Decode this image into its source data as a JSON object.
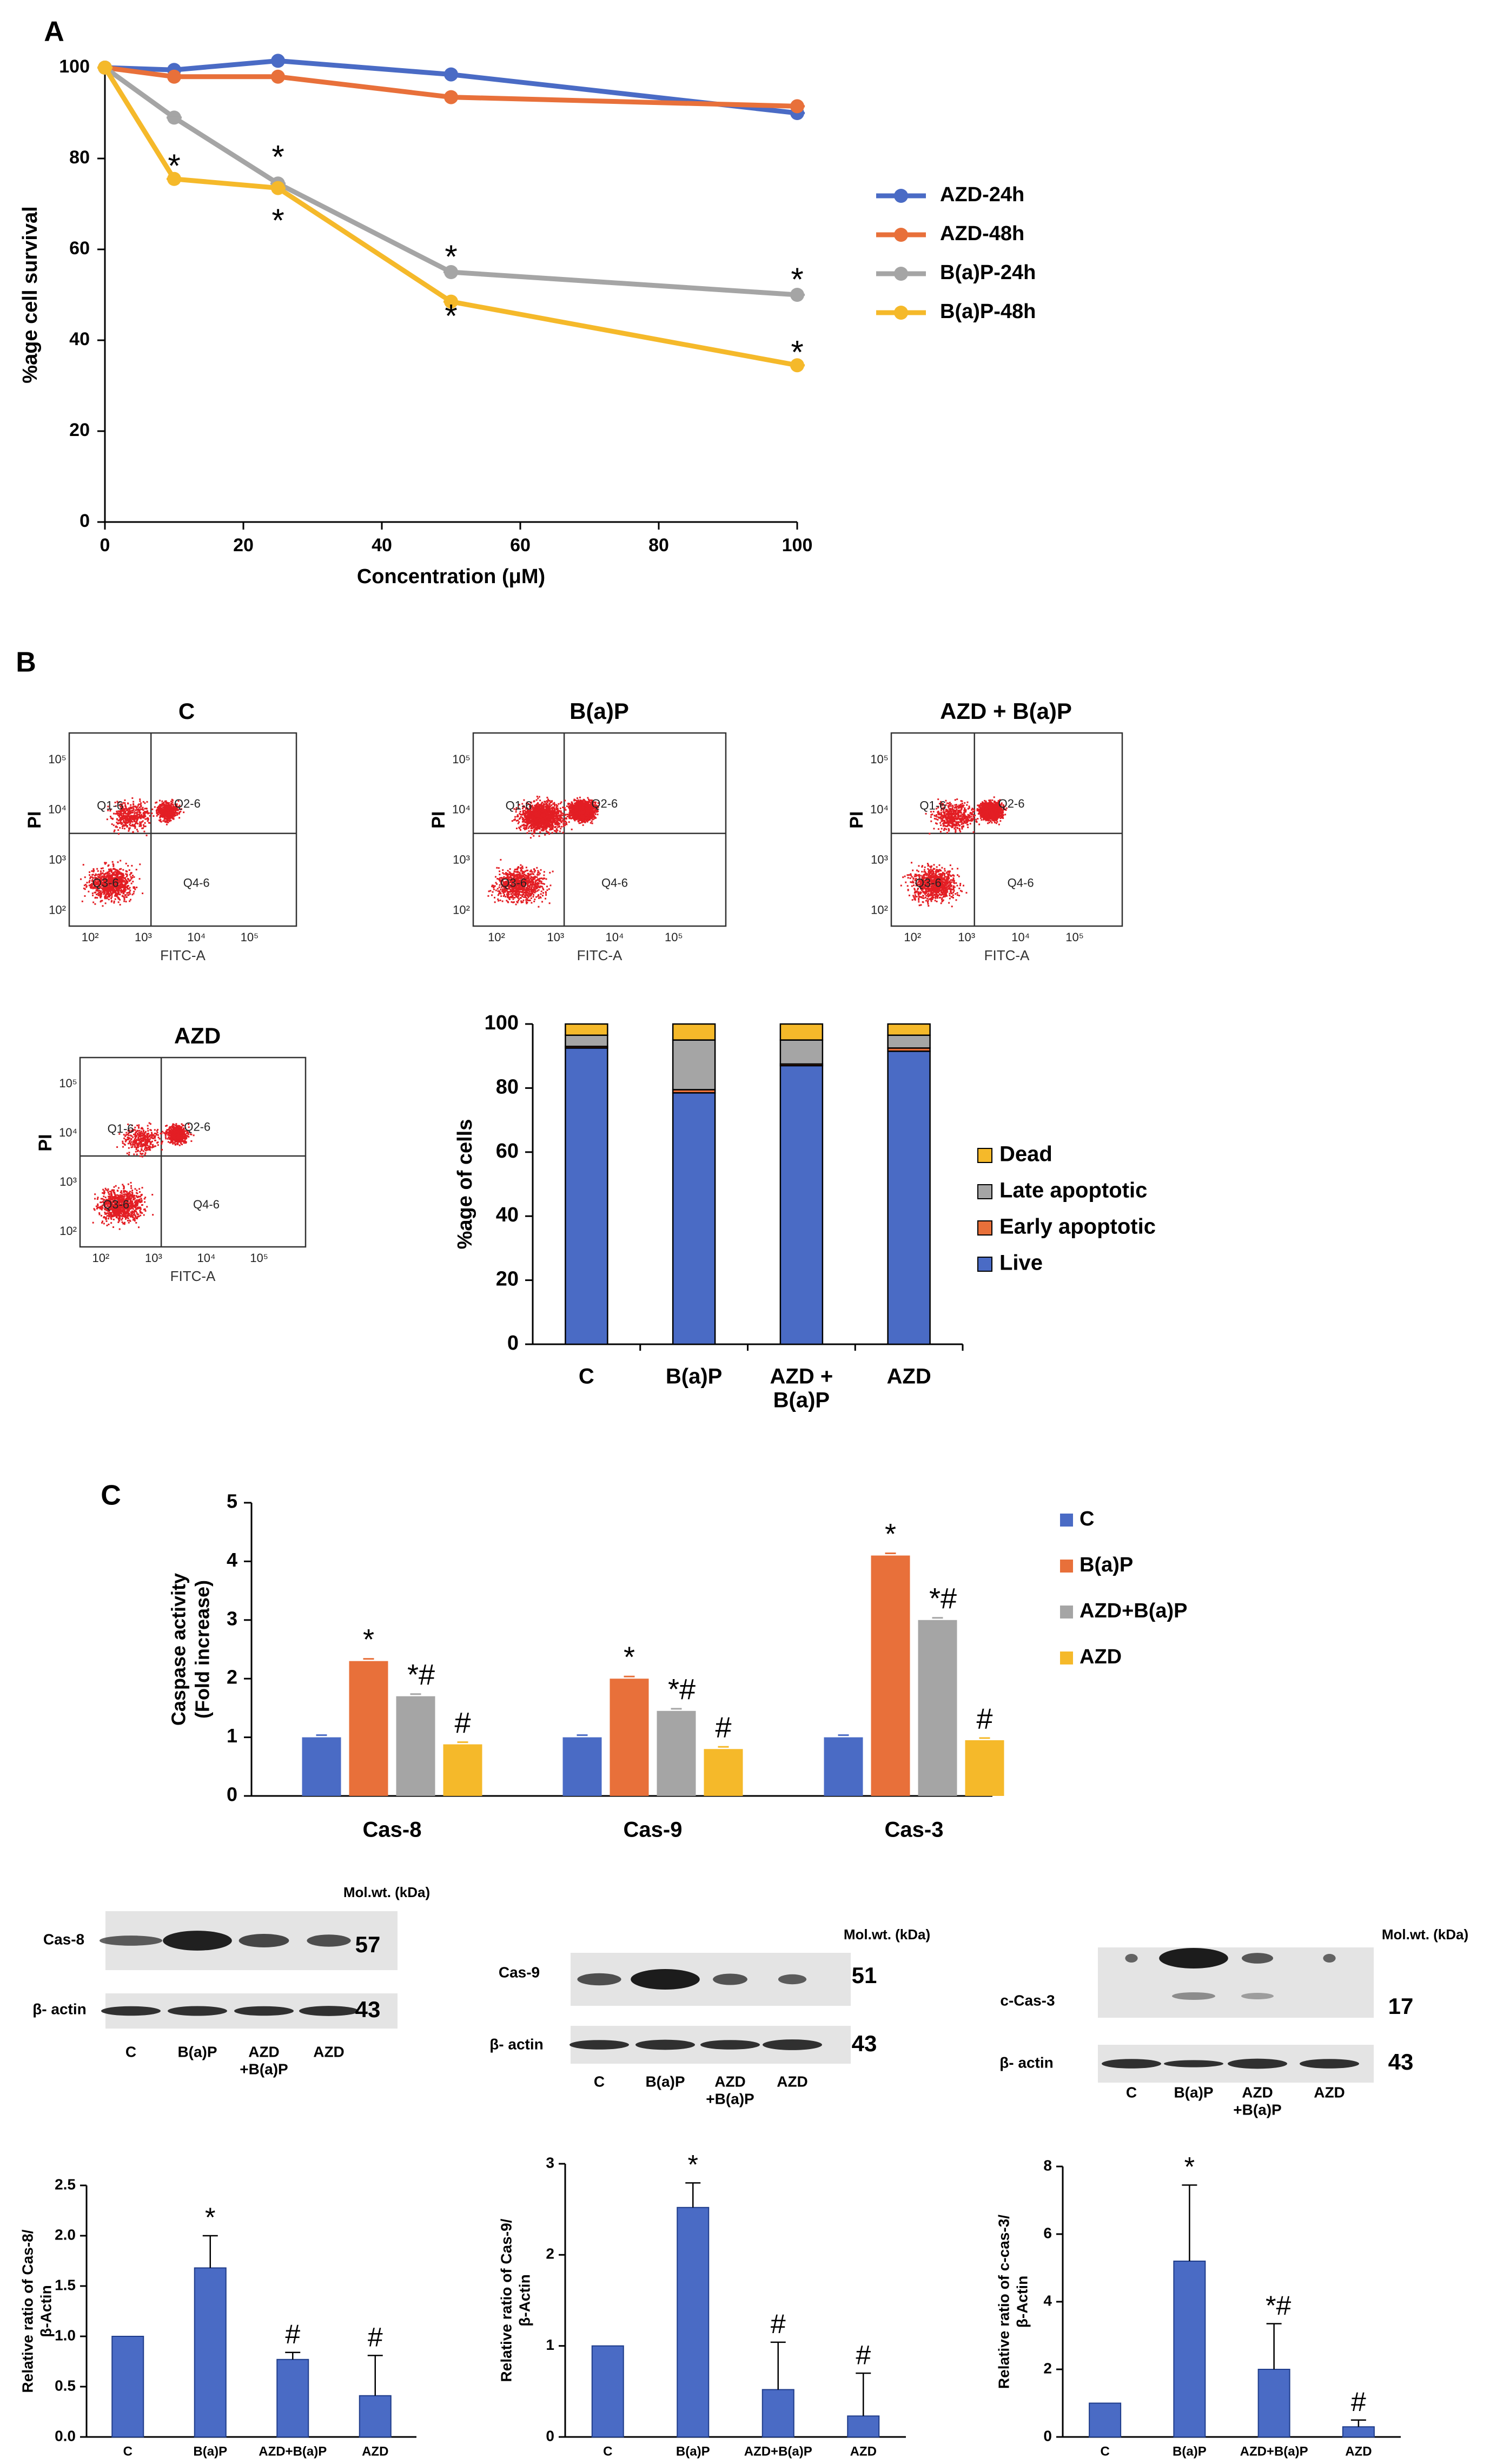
{
  "panel_labels": {
    "a": "A",
    "b": "B",
    "c": "C"
  },
  "colors": {
    "blue": "#4a6bc5",
    "orange": "#e8703a",
    "gray": "#a5a5a5",
    "yellow": "#f5b92a",
    "red": "#e31e24"
  },
  "chart_data": [
    {
      "id": "survival",
      "type": "line",
      "xlabel": "Concentration (μM)",
      "ylabel": "%age cell survival",
      "xlim": [
        0,
        100
      ],
      "ylim": [
        0,
        100
      ],
      "xticks": [
        0,
        20,
        40,
        60,
        80,
        100
      ],
      "yticks": [
        0,
        20,
        40,
        60,
        80,
        100
      ],
      "legend_position": "right",
      "series": [
        {
          "name": "AZD-24h",
          "color": "#4a6bc5",
          "x": [
            0,
            10,
            25,
            50,
            100
          ],
          "y": [
            100,
            99.5,
            101.5,
            98.5,
            90.0
          ]
        },
        {
          "name": "AZD-48h",
          "color": "#e8703a",
          "x": [
            0,
            10,
            25,
            50,
            100
          ],
          "y": [
            100,
            98.0,
            98.0,
            93.5,
            91.5
          ]
        },
        {
          "name": "B(a)P-24h",
          "color": "#a5a5a5",
          "x": [
            0,
            10,
            25,
            50,
            100
          ],
          "y": [
            100,
            89.0,
            74.5,
            55.0,
            50.0
          ]
        },
        {
          "name": "B(a)P-48h",
          "color": "#f5b92a",
          "x": [
            0,
            10,
            25,
            50,
            100
          ],
          "y": [
            100,
            75.5,
            73.5,
            48.5,
            34.5
          ]
        }
      ],
      "annotations": [
        "*",
        "*",
        "*",
        "*",
        "*",
        "*"
      ]
    },
    {
      "id": "apoptosis",
      "type": "bar",
      "stacked": true,
      "ylabel": "%age of cells",
      "ylim": [
        0,
        100
      ],
      "yticks": [
        0,
        20,
        40,
        60,
        80,
        100
      ],
      "categories": [
        "C",
        "B(a)P",
        "AZD +\nB(a)P",
        "AZD"
      ],
      "legend_position": "right",
      "series": [
        {
          "name": "Live",
          "color": "#4a6bc5",
          "values": [
            92.5,
            78.5,
            87.0,
            91.5
          ]
        },
        {
          "name": "Early apoptotic",
          "color": "#e8703a",
          "values": [
            0.5,
            1.0,
            0.5,
            1.0
          ]
        },
        {
          "name": "Late apoptotic",
          "color": "#a5a5a5",
          "values": [
            3.5,
            15.5,
            7.5,
            4.0
          ]
        },
        {
          "name": "Dead",
          "color": "#f5b92a",
          "values": [
            3.5,
            5.0,
            5.0,
            3.5
          ]
        }
      ]
    },
    {
      "id": "caspase",
      "type": "bar",
      "ylabel": "Caspase activity\n(Fold increase)",
      "ylim": [
        0,
        5
      ],
      "yticks": [
        0,
        1,
        2,
        3,
        4,
        5
      ],
      "categories": [
        "Cas-8",
        "Cas-9",
        "Cas-3"
      ],
      "legend_position": "right",
      "series": [
        {
          "name": "C",
          "color": "#4a6bc5",
          "values": [
            1.0,
            1.0,
            1.0
          ]
        },
        {
          "name": "B(a)P",
          "color": "#e8703a",
          "values": [
            2.3,
            2.0,
            4.1
          ]
        },
        {
          "name": "AZD+B(a)P",
          "color": "#a5a5a5",
          "values": [
            1.7,
            1.45,
            3.0
          ]
        },
        {
          "name": "AZD",
          "color": "#f5b92a",
          "values": [
            0.88,
            0.8,
            0.95
          ]
        }
      ],
      "annotations": [
        [
          "",
          "*",
          "*#",
          "#"
        ],
        [
          "",
          "*",
          "*#",
          "#"
        ],
        [
          "",
          "*",
          "*#",
          "#"
        ]
      ]
    },
    {
      "id": "ratio8",
      "type": "bar",
      "ylabel": "Relative ratio of Cas-8/\nβ-Actin",
      "ylim": [
        0,
        2.5
      ],
      "yticks": [
        "0.0",
        "0.5",
        "1.0",
        "1.5",
        "2.0",
        "2.5"
      ],
      "categories": [
        "C",
        "B(a)P",
        "AZD+B(a)P",
        "AZD"
      ],
      "values": [
        1.0,
        1.68,
        0.77,
        0.41
      ],
      "errors": [
        0,
        0.32,
        0.07,
        0.4
      ],
      "annotations": [
        "",
        "*",
        "#",
        "#"
      ]
    },
    {
      "id": "ratio9",
      "type": "bar",
      "ylabel": "Relative ratio of Cas-9/\nβ-Actin",
      "ylim": [
        0,
        3
      ],
      "yticks": [
        "0",
        "1",
        "2",
        "3"
      ],
      "categories": [
        "C",
        "B(a)P",
        "AZD+B(a)P",
        "AZD"
      ],
      "values": [
        1.0,
        2.52,
        0.52,
        0.23
      ],
      "errors": [
        0,
        0.27,
        0.52,
        0.47
      ],
      "annotations": [
        "",
        "*",
        "#",
        "#"
      ]
    },
    {
      "id": "ratio3",
      "type": "bar",
      "ylabel": "Relative ratio of c-cas-3/\nβ-Actin",
      "ylim": [
        0,
        8
      ],
      "yticks": [
        "0",
        "2",
        "4",
        "6",
        "8"
      ],
      "categories": [
        "C",
        "B(a)P",
        "AZD+B(a)P",
        "AZD"
      ],
      "values": [
        1.0,
        5.2,
        2.0,
        0.3
      ],
      "errors": [
        0,
        2.25,
        1.35,
        0.2
      ],
      "annotations": [
        "",
        "*",
        "*#",
        "#"
      ]
    }
  ],
  "flow_plots": [
    {
      "title": "C",
      "ylabel": "PI",
      "xlabel": "FITC-A",
      "quadrants": [
        "Q1-6",
        "Q2-6",
        "Q3-6",
        "Q4-6"
      ]
    },
    {
      "title": "B(a)P",
      "ylabel": "PI",
      "xlabel": "FITC-A",
      "quadrants": [
        "Q1-6",
        "Q2-6",
        "Q3-6",
        "Q4-6"
      ]
    },
    {
      "title": "AZD + B(a)P",
      "ylabel": "PI",
      "xlabel": "FITC-A",
      "quadrants": [
        "Q1-6",
        "Q2-6",
        "Q3-6",
        "Q4-6"
      ]
    },
    {
      "title": "AZD",
      "ylabel": "PI",
      "xlabel": "FITC-A",
      "quadrants": [
        "Q1-6",
        "Q2-6",
        "Q3-6",
        "Q4-6"
      ]
    }
  ],
  "flow_axis": {
    "y_ticks": [
      "10²",
      "10³",
      "10⁴",
      "10⁵"
    ],
    "x_ticks": [
      "10²",
      "10³",
      "10⁴",
      "10⁵"
    ]
  },
  "blots": [
    {
      "mw_header": "Mol.wt. (kDa)",
      "target_label": "Cas-8",
      "target_mw": "57",
      "actin_label": "β- actin",
      "actin_mw": "43",
      "lanes": [
        "C",
        "B(a)P",
        "AZD\n+B(a)P",
        "AZD"
      ]
    },
    {
      "mw_header": "Mol.wt. (kDa)",
      "target_label": "Cas-9",
      "target_mw": "51",
      "actin_label": "β- actin",
      "actin_mw": "43",
      "lanes": [
        "C",
        "B(a)P",
        "AZD\n+B(a)P",
        "AZD"
      ]
    },
    {
      "mw_header": "Mol.wt. (kDa)",
      "target_label": "c-Cas-3",
      "target_mw": "17",
      "actin_label": "β- actin",
      "actin_mw": "43",
      "lanes": [
        "C",
        "B(a)P",
        "AZD\n+B(a)P",
        "AZD"
      ]
    }
  ]
}
